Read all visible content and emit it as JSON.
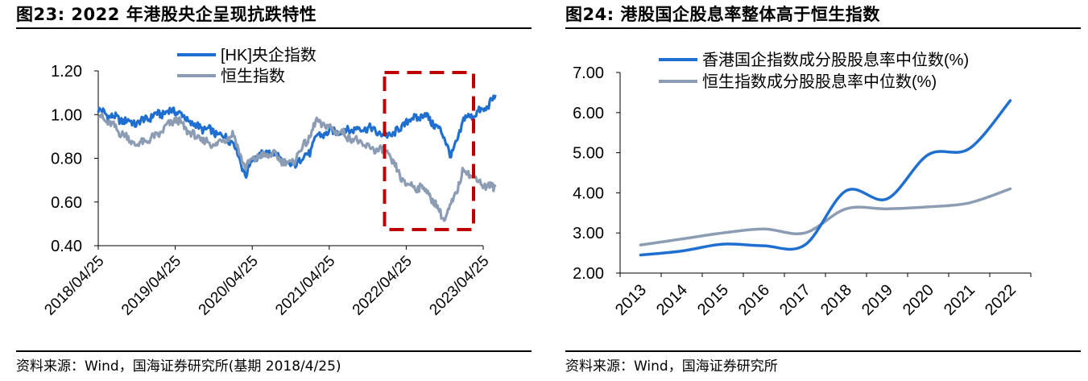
{
  "figure_left": {
    "title": "图23:   2022 年港股央企呈现抗跌特性",
    "source": "资料来源：Wind，国海证券研究所(基期 2018/4/25)"
  },
  "figure_right": {
    "title": "图24:   港股国企股息率整体高于恒生指数",
    "source": "资料来源：Wind，国海证券研究所"
  },
  "chart_data": [
    {
      "type": "line",
      "title": "2022 年港股央企呈现抗跌特性",
      "xlabel": "",
      "ylabel": "",
      "ylim": [
        0.4,
        1.2
      ],
      "yticks": [
        "1.20",
        "1.00",
        "0.80",
        "0.60",
        "0.40"
      ],
      "xticks": [
        "2018/04/25",
        "2019/04/25",
        "2020/04/25",
        "2021/04/25",
        "2022/04/25",
        "2023/04/25"
      ],
      "legend_position": "top-center",
      "x": [
        "2018/04",
        "2018/07",
        "2018/10",
        "2019/01",
        "2019/04",
        "2019/07",
        "2019/10",
        "2020/01",
        "2020/03",
        "2020/04",
        "2020/07",
        "2020/10",
        "2021/01",
        "2021/02",
        "2021/04",
        "2021/07",
        "2021/10",
        "2022/01",
        "2022/03",
        "2022/04",
        "2022/07",
        "2022/10",
        "2022/11",
        "2023/01",
        "2023/04",
        "2023/06"
      ],
      "series": [
        {
          "name": "[HK]央企指数",
          "color": "#1f6fd1",
          "values": [
            1.02,
            0.98,
            0.96,
            1.0,
            1.02,
            0.95,
            0.92,
            0.88,
            0.72,
            0.8,
            0.83,
            0.76,
            0.83,
            0.9,
            0.92,
            0.93,
            0.94,
            0.9,
            0.93,
            0.97,
            1.0,
            0.9,
            0.8,
            0.98,
            1.02,
            1.08
          ]
        },
        {
          "name": "恒生指数",
          "color": "#8c9cb3",
          "values": [
            1.0,
            0.93,
            0.86,
            0.9,
            0.98,
            0.9,
            0.86,
            0.91,
            0.75,
            0.8,
            0.82,
            0.77,
            0.9,
            0.97,
            0.94,
            0.9,
            0.85,
            0.83,
            0.72,
            0.68,
            0.66,
            0.52,
            0.58,
            0.75,
            0.68,
            0.66
          ]
        }
      ],
      "highlight": {
        "style": "dashed-box",
        "color": "#c00000",
        "x_start": "2022/01",
        "x_end": "2023/04"
      }
    },
    {
      "type": "line",
      "title": "港股国企股息率整体高于恒生指数",
      "xlabel": "",
      "ylabel": "",
      "ylim": [
        2.0,
        7.0
      ],
      "yticks": [
        "7.00",
        "6.00",
        "5.00",
        "4.00",
        "3.00",
        "2.00"
      ],
      "categories": [
        "2013",
        "2014",
        "2015",
        "2016",
        "2017",
        "2018",
        "2019",
        "2020",
        "2021",
        "2022"
      ],
      "legend_position": "top-center",
      "series": [
        {
          "name": "香港国企指数成分股股息率中位数(%)",
          "color": "#1f6fd1",
          "values": [
            2.45,
            2.55,
            2.72,
            2.68,
            2.7,
            4.05,
            3.85,
            4.95,
            5.1,
            6.3
          ]
        },
        {
          "name": "恒生指数成分股股息率中位数(%)",
          "color": "#8c9cb3",
          "values": [
            2.7,
            2.85,
            3.0,
            3.1,
            3.0,
            3.6,
            3.6,
            3.65,
            3.75,
            4.1
          ]
        }
      ]
    }
  ]
}
